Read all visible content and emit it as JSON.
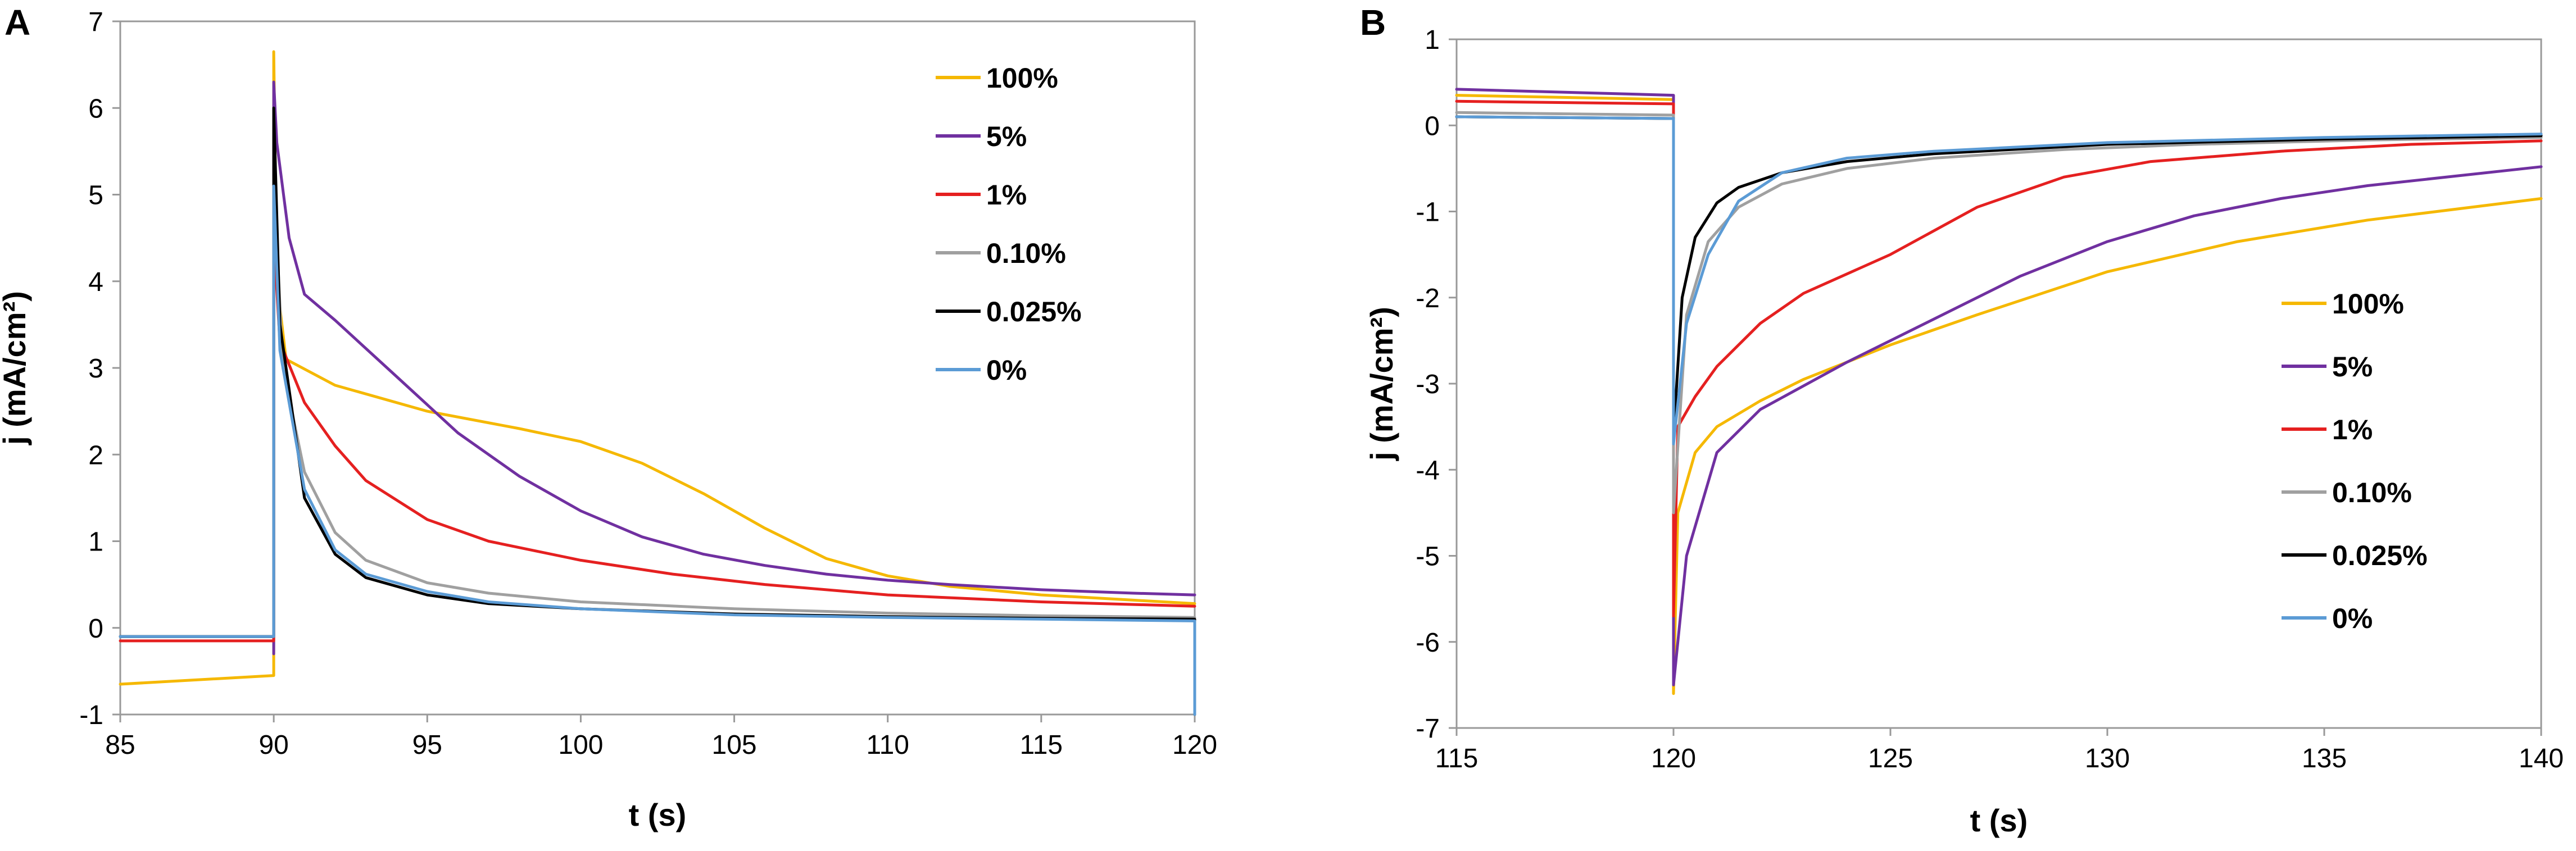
{
  "chart_data": [
    {
      "panel": "A",
      "type": "line",
      "xlabel": "t (s)",
      "ylabel": "j (mA/cm²)",
      "xlim": [
        85,
        120
      ],
      "ylim": [
        -1,
        7
      ],
      "xticks": [
        85,
        90,
        95,
        100,
        105,
        110,
        115,
        120
      ],
      "yticks": [
        -1,
        0,
        1,
        2,
        3,
        4,
        5,
        6,
        7
      ],
      "grid": false,
      "legend_position": "top-right",
      "series": [
        {
          "name": "100%",
          "color": "#F5B800",
          "points": [
            [
              85,
              -0.65
            ],
            [
              90,
              -0.55
            ],
            [
              90,
              6.65
            ],
            [
              90.1,
              4.0
            ],
            [
              90.4,
              3.1
            ],
            [
              92,
              2.8
            ],
            [
              95,
              2.5
            ],
            [
              98,
              2.3
            ],
            [
              100,
              2.15
            ],
            [
              102,
              1.9
            ],
            [
              104,
              1.55
            ],
            [
              106,
              1.15
            ],
            [
              108,
              0.8
            ],
            [
              110,
              0.6
            ],
            [
              112,
              0.48
            ],
            [
              115,
              0.38
            ],
            [
              118,
              0.32
            ],
            [
              120,
              0.28
            ]
          ]
        },
        {
          "name": "5%",
          "color": "#7030A0",
          "points": [
            [
              90,
              -0.3
            ],
            [
              90,
              6.3
            ],
            [
              90.1,
              5.6
            ],
            [
              90.5,
              4.5
            ],
            [
              91,
              3.85
            ],
            [
              92,
              3.55
            ],
            [
              94,
              2.9
            ],
            [
              96,
              2.25
            ],
            [
              98,
              1.75
            ],
            [
              100,
              1.35
            ],
            [
              102,
              1.05
            ],
            [
              104,
              0.85
            ],
            [
              106,
              0.72
            ],
            [
              108,
              0.62
            ],
            [
              110,
              0.55
            ],
            [
              112,
              0.5
            ],
            [
              115,
              0.44
            ],
            [
              118,
              0.4
            ],
            [
              120,
              0.38
            ]
          ]
        },
        {
          "name": "1%",
          "color": "#E52020",
          "points": [
            [
              85,
              -0.15
            ],
            [
              90,
              -0.15
            ],
            [
              90,
              4.5
            ],
            [
              90.2,
              3.3
            ],
            [
              91,
              2.6
            ],
            [
              92,
              2.1
            ],
            [
              93,
              1.7
            ],
            [
              95,
              1.25
            ],
            [
              97,
              1.0
            ],
            [
              100,
              0.78
            ],
            [
              103,
              0.62
            ],
            [
              106,
              0.5
            ],
            [
              110,
              0.38
            ],
            [
              115,
              0.3
            ],
            [
              120,
              0.25
            ]
          ]
        },
        {
          "name": "0.10%",
          "color": "#A0A0A0",
          "points": [
            [
              85,
              -0.1
            ],
            [
              90,
              -0.1
            ],
            [
              90,
              5.2
            ],
            [
              90.3,
              3.0
            ],
            [
              91,
              1.8
            ],
            [
              92,
              1.1
            ],
            [
              93,
              0.78
            ],
            [
              95,
              0.52
            ],
            [
              97,
              0.4
            ],
            [
              100,
              0.3
            ],
            [
              105,
              0.22
            ],
            [
              110,
              0.17
            ],
            [
              115,
              0.14
            ],
            [
              120,
              0.12
            ]
          ]
        },
        {
          "name": "0.025%",
          "color": "#000000",
          "points": [
            [
              85,
              -0.1
            ],
            [
              90,
              -0.1
            ],
            [
              90,
              6.0
            ],
            [
              90.2,
              3.5
            ],
            [
              91,
              1.5
            ],
            [
              92,
              0.85
            ],
            [
              93,
              0.58
            ],
            [
              95,
              0.38
            ],
            [
              97,
              0.28
            ],
            [
              100,
              0.22
            ],
            [
              105,
              0.16
            ],
            [
              110,
              0.13
            ],
            [
              115,
              0.11
            ],
            [
              120,
              0.1
            ],
            [
              120,
              -1.0
            ]
          ]
        },
        {
          "name": "0%",
          "color": "#5B9BD5",
          "points": [
            [
              85,
              -0.1
            ],
            [
              90,
              -0.1
            ],
            [
              90,
              5.1
            ],
            [
              90.2,
              3.2
            ],
            [
              91,
              1.6
            ],
            [
              92,
              0.9
            ],
            [
              93,
              0.62
            ],
            [
              95,
              0.42
            ],
            [
              97,
              0.3
            ],
            [
              100,
              0.22
            ],
            [
              105,
              0.15
            ],
            [
              110,
              0.12
            ],
            [
              115,
              0.1
            ],
            [
              120,
              0.08
            ],
            [
              120,
              -1.0
            ]
          ]
        }
      ]
    },
    {
      "panel": "B",
      "type": "line",
      "xlabel": "t (s)",
      "ylabel": "j (mA/cm²)",
      "xlim": [
        115,
        140
      ],
      "ylim": [
        -7,
        1
      ],
      "xticks": [
        115,
        120,
        125,
        130,
        135,
        140
      ],
      "yticks": [
        -7,
        -6,
        -5,
        -4,
        -3,
        -2,
        -1,
        0,
        1
      ],
      "grid": false,
      "legend_position": "right",
      "series": [
        {
          "name": "100%",
          "color": "#F5B800",
          "points": [
            [
              115,
              0.35
            ],
            [
              120,
              0.3
            ],
            [
              120,
              -6.6
            ],
            [
              120.1,
              -4.5
            ],
            [
              120.5,
              -3.8
            ],
            [
              121,
              -3.5
            ],
            [
              122,
              -3.2
            ],
            [
              123,
              -2.95
            ],
            [
              125,
              -2.55
            ],
            [
              127,
              -2.2
            ],
            [
              130,
              -1.7
            ],
            [
              133,
              -1.35
            ],
            [
              136,
              -1.1
            ],
            [
              140,
              -0.85
            ]
          ]
        },
        {
          "name": "5%",
          "color": "#7030A0",
          "points": [
            [
              115,
              0.42
            ],
            [
              120,
              0.35
            ],
            [
              120,
              -6.5
            ],
            [
              120.3,
              -5.0
            ],
            [
              121,
              -3.8
            ],
            [
              122,
              -3.3
            ],
            [
              124,
              -2.75
            ],
            [
              126,
              -2.25
            ],
            [
              128,
              -1.75
            ],
            [
              130,
              -1.35
            ],
            [
              132,
              -1.05
            ],
            [
              134,
              -0.85
            ],
            [
              136,
              -0.7
            ],
            [
              140,
              -0.48
            ]
          ]
        },
        {
          "name": "1%",
          "color": "#E52020",
          "points": [
            [
              115,
              0.28
            ],
            [
              120,
              0.25
            ],
            [
              120,
              -5.7
            ],
            [
              120.1,
              -3.5
            ],
            [
              120.5,
              -3.15
            ],
            [
              121,
              -2.8
            ],
            [
              122,
              -2.3
            ],
            [
              123,
              -1.95
            ],
            [
              125,
              -1.5
            ],
            [
              127,
              -0.95
            ],
            [
              129,
              -0.6
            ],
            [
              131,
              -0.42
            ],
            [
              134,
              -0.3
            ],
            [
              137,
              -0.22
            ],
            [
              140,
              -0.18
            ]
          ]
        },
        {
          "name": "0.10%",
          "color": "#A0A0A0",
          "points": [
            [
              115,
              0.15
            ],
            [
              120,
              0.12
            ],
            [
              120,
              -4.5
            ],
            [
              120.3,
              -2.2
            ],
            [
              120.8,
              -1.35
            ],
            [
              121.5,
              -0.95
            ],
            [
              122.5,
              -0.68
            ],
            [
              124,
              -0.5
            ],
            [
              126,
              -0.38
            ],
            [
              129,
              -0.28
            ],
            [
              132,
              -0.22
            ],
            [
              136,
              -0.17
            ],
            [
              140,
              -0.14
            ]
          ]
        },
        {
          "name": "0.025%",
          "color": "#000000",
          "points": [
            [
              115,
              0.1
            ],
            [
              120,
              0.08
            ],
            [
              120,
              -3.6
            ],
            [
              120.2,
              -2.0
            ],
            [
              120.5,
              -1.3
            ],
            [
              121,
              -0.9
            ],
            [
              121.5,
              -0.72
            ],
            [
              122.5,
              -0.55
            ],
            [
              124,
              -0.42
            ],
            [
              126,
              -0.33
            ],
            [
              130,
              -0.22
            ],
            [
              135,
              -0.16
            ],
            [
              140,
              -0.12
            ]
          ]
        },
        {
          "name": "0%",
          "color": "#5B9BD5",
          "points": [
            [
              115,
              0.1
            ],
            [
              120,
              0.08
            ],
            [
              120,
              -3.7
            ],
            [
              120.3,
              -2.3
            ],
            [
              120.8,
              -1.5
            ],
            [
              121.5,
              -0.88
            ],
            [
              122.5,
              -0.55
            ],
            [
              124,
              -0.38
            ],
            [
              126,
              -0.3
            ],
            [
              130,
              -0.2
            ],
            [
              135,
              -0.14
            ],
            [
              140,
              -0.1
            ]
          ]
        }
      ]
    }
  ]
}
